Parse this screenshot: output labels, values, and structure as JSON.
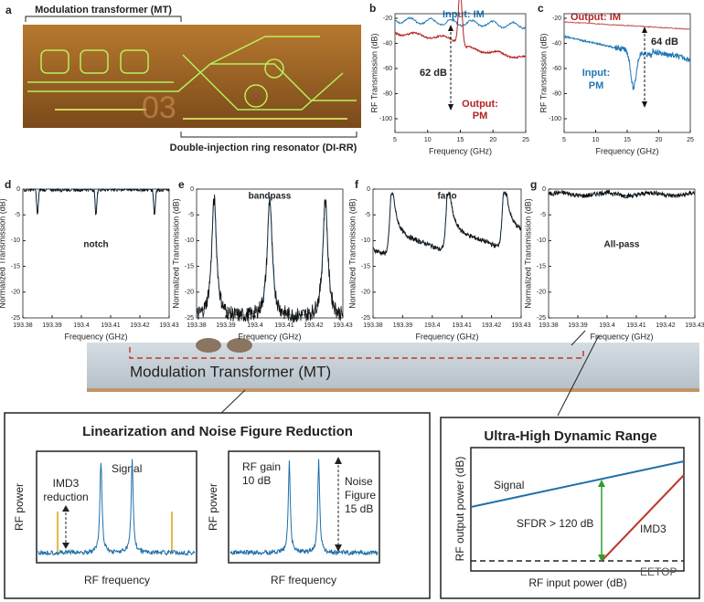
{
  "panel_a": {
    "label": "a",
    "top_caption": "Modulation transformer (MT)",
    "bottom_caption": "Double-injection ring resonator (DI-RR)",
    "chip_mark": "03"
  },
  "panel_b": {
    "label": "b",
    "y_label": "RF Transmission (dB)",
    "x_label": "Frequency (GHz)",
    "yticks": [
      -20,
      -40,
      -60,
      -80,
      -100
    ],
    "xticks": [
      5,
      10,
      15,
      20,
      25
    ],
    "input": "Input: IM",
    "delta": "62 dB",
    "output": [
      "Output:",
      "PM"
    ]
  },
  "panel_c": {
    "label": "c",
    "y_label": "RF Transmission (dB)",
    "x_label": "Frequency (GHz)",
    "yticks": [
      -20,
      -40,
      -60,
      -80,
      -100
    ],
    "xticks": [
      5,
      10,
      15,
      20,
      25
    ],
    "output": "Output: IM",
    "delta": "64 dB",
    "input": [
      "Input:",
      "PM"
    ]
  },
  "filter_axes": {
    "y_label": "Normalized Transmission (dB)",
    "x_label": "Frequency (GHz)",
    "yticks": [
      0,
      -5,
      -10,
      -15,
      -20,
      -25
    ],
    "xticks": [
      193.38,
      193.39,
      193.4,
      193.41,
      193.42,
      193.43
    ]
  },
  "filters": [
    {
      "label": "d",
      "name": "notch"
    },
    {
      "label": "e",
      "name": "bandpass"
    },
    {
      "label": "f",
      "name": "fano"
    },
    {
      "label": "g",
      "name": "All-pass"
    }
  ],
  "middle": {
    "label": "Modulation Transformer (MT)"
  },
  "linearization": {
    "title": "Linearization and Noise Figure Reduction",
    "left": {
      "signal": "Signal",
      "imd3": [
        "IMD3",
        "reduction"
      ],
      "y_label": "RF power",
      "x_label": "RF frequency"
    },
    "right": {
      "gain": [
        "RF gain",
        "10 dB"
      ],
      "noise": [
        "Noise",
        "Figure",
        "15 dB"
      ],
      "y_label": "RF power",
      "x_label": "RF frequency"
    }
  },
  "dynamic_range": {
    "title": "Ultra-High Dynamic Range",
    "signal": "Signal",
    "sfdr": "SFDR > 120 dB",
    "imd3": "IMD3",
    "y_label": "RF output power (dB)",
    "x_label": "RF input power (dB)"
  },
  "watermark": "EETOP"
}
